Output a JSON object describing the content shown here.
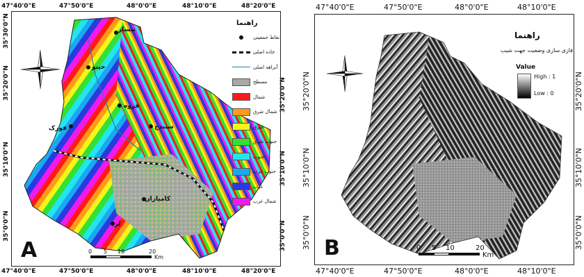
{
  "panel_a": {
    "letter": "A",
    "top_ticks": [
      "47°40'0\"E",
      "47°50'0\"E",
      "48°0'0\"E",
      "48°10'0\"E",
      "48°20'0\"E"
    ],
    "bottom_ticks": [
      "47°40'0\"E",
      "47°50'0\"E",
      "48°0'0\"E",
      "48°10'0\"E",
      "48°20'0\"E"
    ],
    "left_ticks": [
      "35°30'0\"N",
      "35°20'0\"N",
      "35°10'0\"N",
      "35°0'0\"N"
    ],
    "right_ticks": [
      "35°20'0\"N",
      "35°10'0\"N",
      "35°0'0\"N"
    ],
    "legend": {
      "title": "راهنما",
      "items": [
        {
          "label": "نقاط جمعیتی",
          "kind": "point"
        },
        {
          "label": "جاده اصلی",
          "kind": "road"
        },
        {
          "label": "آبراهه اصلی",
          "kind": "river"
        },
        {
          "label": "مسطح",
          "color": "#a8a8a8"
        },
        {
          "label": "شمال",
          "color": "#ff1a1a"
        },
        {
          "label": "شمال شرق",
          "color": "#ff9a1a"
        },
        {
          "label": "شرق",
          "color": "#f5f51a"
        },
        {
          "label": "جنوب شرق",
          "color": "#33e033"
        },
        {
          "label": "جنوب",
          "color": "#22e5f0"
        },
        {
          "label": "جنوب غرب",
          "color": "#1aa8f0"
        },
        {
          "label": "غرب",
          "color": "#2a3adf"
        },
        {
          "label": "شمال غرب",
          "color": "#f01af0"
        }
      ]
    },
    "scale": {
      "labels": [
        "0",
        "5",
        "10",
        "20"
      ],
      "unit": "Km"
    },
    "cities": [
      "نیسار",
      "خینو",
      "قروه",
      "سنندج",
      "فورک",
      "کامیاران",
      "لرد"
    ]
  },
  "panel_b": {
    "letter": "B",
    "top_ticks": [
      "47°40'0\"E",
      "47°50'0\"E",
      "48°0'0\"E",
      "48°10'0\"E"
    ],
    "bottom_ticks": [
      "47°40'0\"E",
      "47°50'0\"E",
      "48°0'0\"E",
      "48°10'0\"E"
    ],
    "left_ticks": [
      "35°20'0\"N",
      "35°10'0\"N",
      "35°0'0\"N"
    ],
    "right_ticks": [
      "35°20'0\"N",
      "35°10'0\"N",
      "35°0'0\"N"
    ],
    "legend": {
      "title": "راهنما",
      "subtitle": "فازی سازی وضعیت جهت شیب",
      "value_label": "Value",
      "high": "High : 1",
      "low": "Low : 0"
    },
    "scale": {
      "labels": [
        "0",
        "5",
        "10",
        "20"
      ],
      "unit": "Km"
    }
  },
  "colors": {
    "frame": "#222222",
    "flat": "#a8a8a8"
  }
}
